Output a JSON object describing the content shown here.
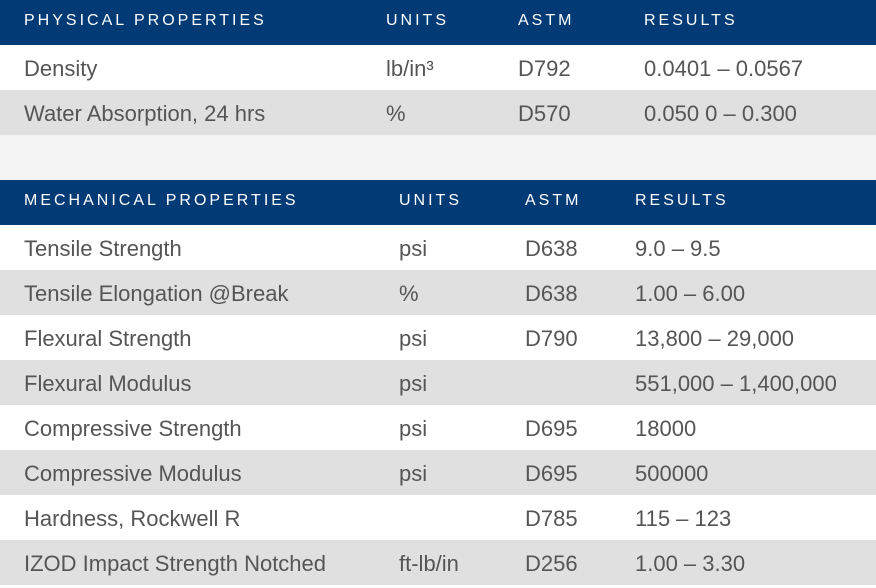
{
  "physical": {
    "headers": [
      "PHYSICAL PROPERTIES",
      "UNITS",
      "ASTM",
      "RESULTS"
    ],
    "rows": [
      [
        "Density",
        "lb/in³",
        "D792",
        "0.0401 – 0.0567"
      ],
      [
        "Water Absorption, 24 hrs",
        "%",
        "D570",
        "0.050 0 – 0.300"
      ]
    ]
  },
  "mechanical": {
    "headers": [
      "MECHANICAL PROPERTIES",
      "UNITS",
      "ASTM",
      "RESULTS"
    ],
    "rows": [
      [
        "Tensile Strength",
        "psi",
        "D638",
        "9.0 – 9.5"
      ],
      [
        "Tensile Elongation @Break",
        "%",
        "D638",
        "1.00 – 6.00"
      ],
      [
        "Flexural Strength",
        "psi",
        "D790",
        "13,800 – 29,000"
      ],
      [
        "Flexural Modulus",
        "psi",
        "",
        "551,000 – 1,400,000"
      ],
      [
        "Compressive Strength",
        "psi",
        "D695",
        "18000"
      ],
      [
        "Compressive Modulus",
        "psi",
        "D695",
        "500000"
      ],
      [
        "Hardness, Rockwell R",
        "",
        "D785",
        "115 – 123"
      ],
      [
        "IZOD Impact Strength Notched",
        "ft-lb/in",
        "D256",
        "1.00 – 3.30"
      ]
    ]
  },
  "colors": {
    "header_bg": "#013a75",
    "header_text": "#ffffff",
    "row_shade": "#e0e0e0",
    "spacer": "#f3f3f3"
  }
}
